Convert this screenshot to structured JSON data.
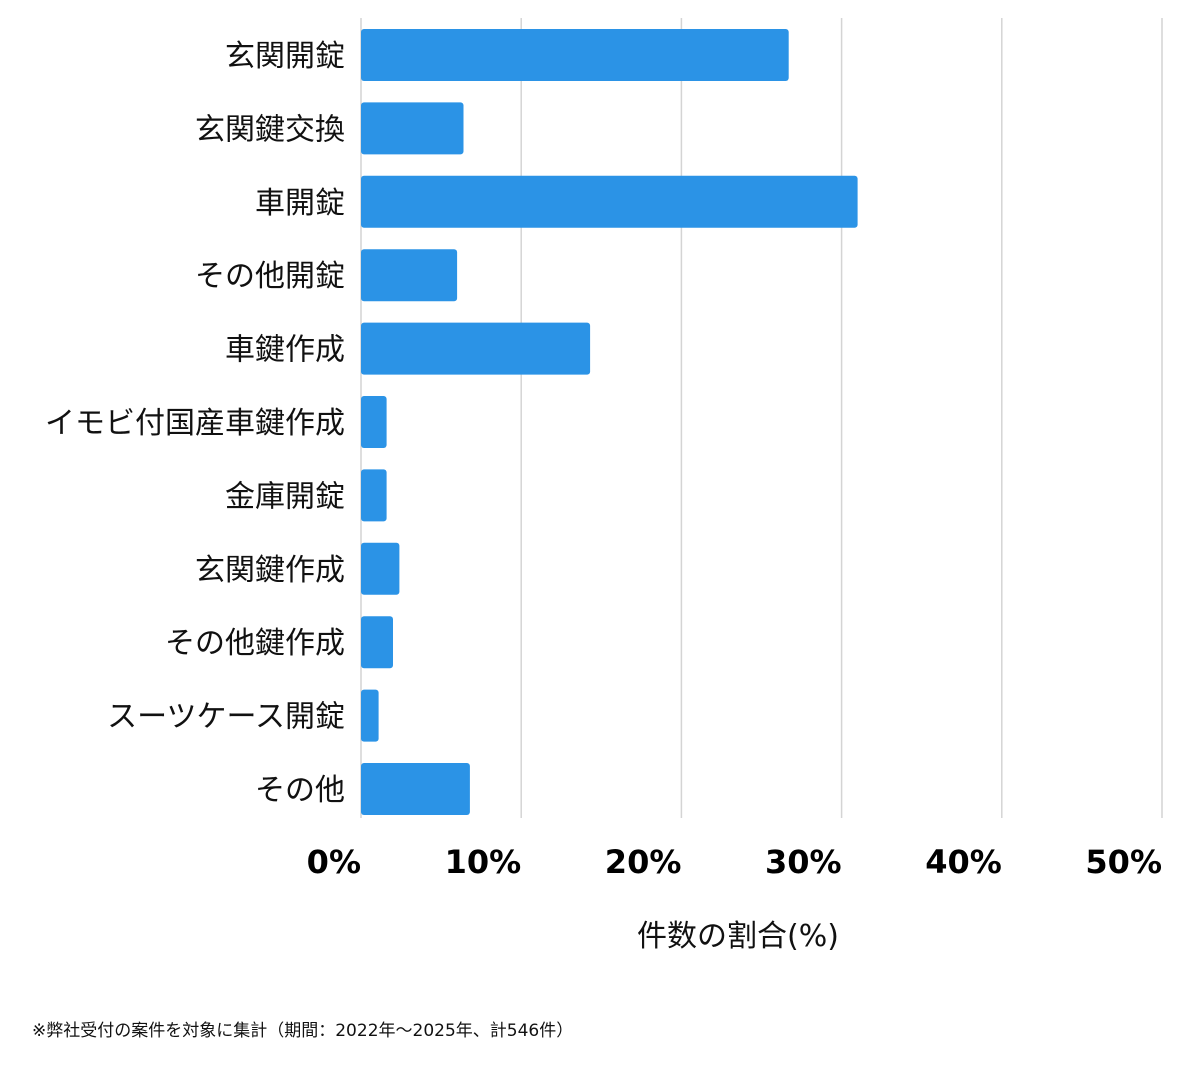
{
  "chart_data": {
    "type": "bar",
    "orientation": "horizontal",
    "categories": [
      "玄関開錠",
      "玄関鍵交換",
      "車開錠",
      "その他開錠",
      "車鍵作成",
      "イモビ付国産車鍵作成",
      "金庫開錠",
      "玄関鍵作成",
      "その他鍵作成",
      "スーツケース開錠",
      "その他"
    ],
    "values": [
      26.7,
      6.4,
      31.0,
      6.0,
      14.3,
      1.6,
      1.6,
      2.4,
      2.0,
      1.1,
      6.8
    ],
    "xlabel": "件数の割合(%)",
    "ylabel": "",
    "xlim": [
      0,
      50
    ],
    "xticks": [
      0,
      10,
      20,
      30,
      40,
      50
    ],
    "xtick_labels": [
      "0%",
      "10%",
      "20%",
      "30%",
      "40%",
      "50%"
    ],
    "grid": true,
    "bar_color": "#2b93e6",
    "grid_color": "#d4d4d4"
  },
  "footnote": "※弊社受付の案件を対象に集計（期間：2022年〜2025年、計546件）"
}
